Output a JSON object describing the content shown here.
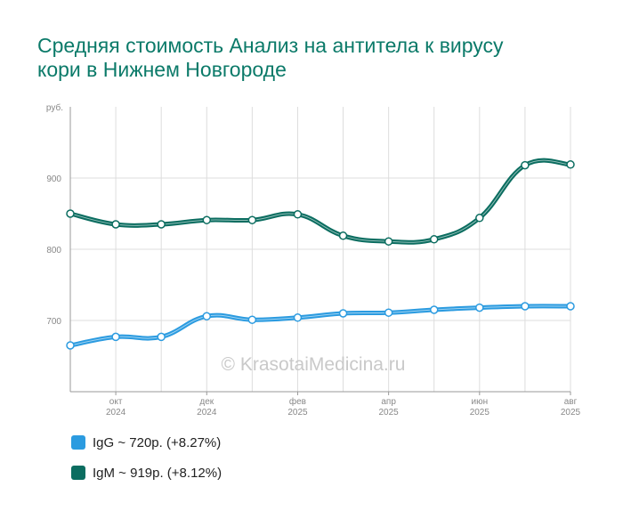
{
  "title": "Средняя стоимость Анализ на антитела к вирусу кори в Нижнем Новгороде",
  "watermark": "© KrasotaiMedicina.ru",
  "legend": [
    {
      "label": "IgG ~ 720р. (+8.27%)",
      "color": "#2b9be0"
    },
    {
      "label": "IgM ~ 919р. (+8.12%)",
      "color": "#0b6d60"
    }
  ],
  "chart_data": {
    "type": "line",
    "y_unit_label": "руб.",
    "ylim": [
      600,
      1000
    ],
    "yticks": [
      700,
      800,
      900
    ],
    "grid": true,
    "x_ticks": [
      {
        "month": "окт",
        "year": "2024",
        "index": 1
      },
      {
        "month": "дек",
        "year": "2024",
        "index": 3
      },
      {
        "month": "фев",
        "year": "2025",
        "index": 5
      },
      {
        "month": "апр",
        "year": "2025",
        "index": 7
      },
      {
        "month": "июн",
        "year": "2025",
        "index": 9
      },
      {
        "month": "авг",
        "year": "2025",
        "index": 11
      }
    ],
    "series": [
      {
        "name": "IgG",
        "color": "#2b9be0",
        "values": [
          665,
          677,
          677,
          706,
          701,
          704,
          710,
          711,
          715,
          718,
          720,
          720
        ]
      },
      {
        "name": "IgM",
        "color": "#0b6d60",
        "values": [
          850,
          835,
          835,
          841,
          841,
          849,
          819,
          811,
          814,
          844,
          918,
          919
        ]
      }
    ]
  }
}
